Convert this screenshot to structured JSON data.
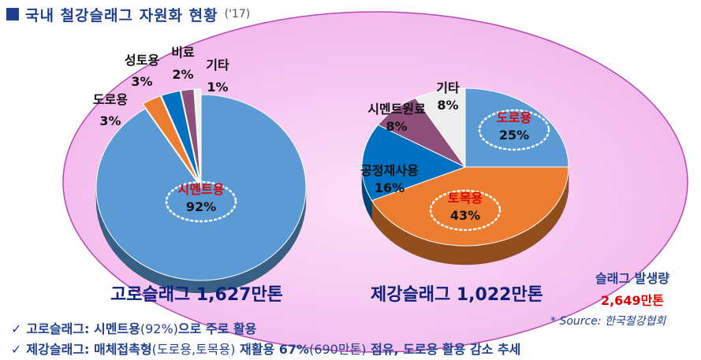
{
  "title": {
    "text": "국내 철강슬래그 자원화 현황",
    "year": "('17)"
  },
  "chart_data": [
    {
      "type": "pie",
      "caption": "고로슬래그 1,627만톤",
      "slices": [
        {
          "label": "시멘트용",
          "value": 92,
          "pct": "92%",
          "color": "#5b9bd5",
          "highlight": true
        },
        {
          "label": "도로용",
          "value": 3,
          "pct": "3%",
          "color": "#ed7d31"
        },
        {
          "label": "성토용",
          "value": 3,
          "pct": "3%",
          "color": "#0070c0"
        },
        {
          "label": "비료",
          "value": 2,
          "pct": "2%",
          "color": "#8e4f7a"
        },
        {
          "label": "기타",
          "value": 1,
          "pct": "1%",
          "color": "#eeeeee"
        }
      ]
    },
    {
      "type": "pie",
      "caption": "제강슬래그 1,022만톤",
      "slices": [
        {
          "label": "도로용",
          "value": 25,
          "pct": "25%",
          "color": "#5b9bd5",
          "highlight": true
        },
        {
          "label": "토목용",
          "value": 43,
          "pct": "43%",
          "color": "#ed7d31",
          "highlight": true
        },
        {
          "label": "공정재사용",
          "value": 16,
          "pct": "16%",
          "color": "#0070c0"
        },
        {
          "label": "시멘트원료",
          "value": 8,
          "pct": "8%",
          "color": "#8e4f7a"
        },
        {
          "label": "기타",
          "value": 8,
          "pct": "8%",
          "color": "#eeeeee"
        }
      ]
    }
  ],
  "generation": {
    "label": "슬래그 발생량",
    "value": "2,649만톤"
  },
  "source": "* Source: 한국철강협회",
  "bullets": [
    {
      "main": "고로슬래그: 시멘트용",
      "paren": "(92%)",
      "rest": "으로 주로 활용"
    },
    {
      "main": "제강슬래그: 매체접촉형",
      "paren": "(도로용,토목용)",
      "rest": " 재활용 67%",
      "paren2": "(690만톤)",
      "rest2": " 점유, 도로용 활용 감소 추세"
    }
  ],
  "colors": {
    "accent": "#1f3f8f",
    "highlight_text": "#e00000",
    "ellipse_fill": "#fce4f8",
    "ellipse_stroke": "#a020a0"
  }
}
